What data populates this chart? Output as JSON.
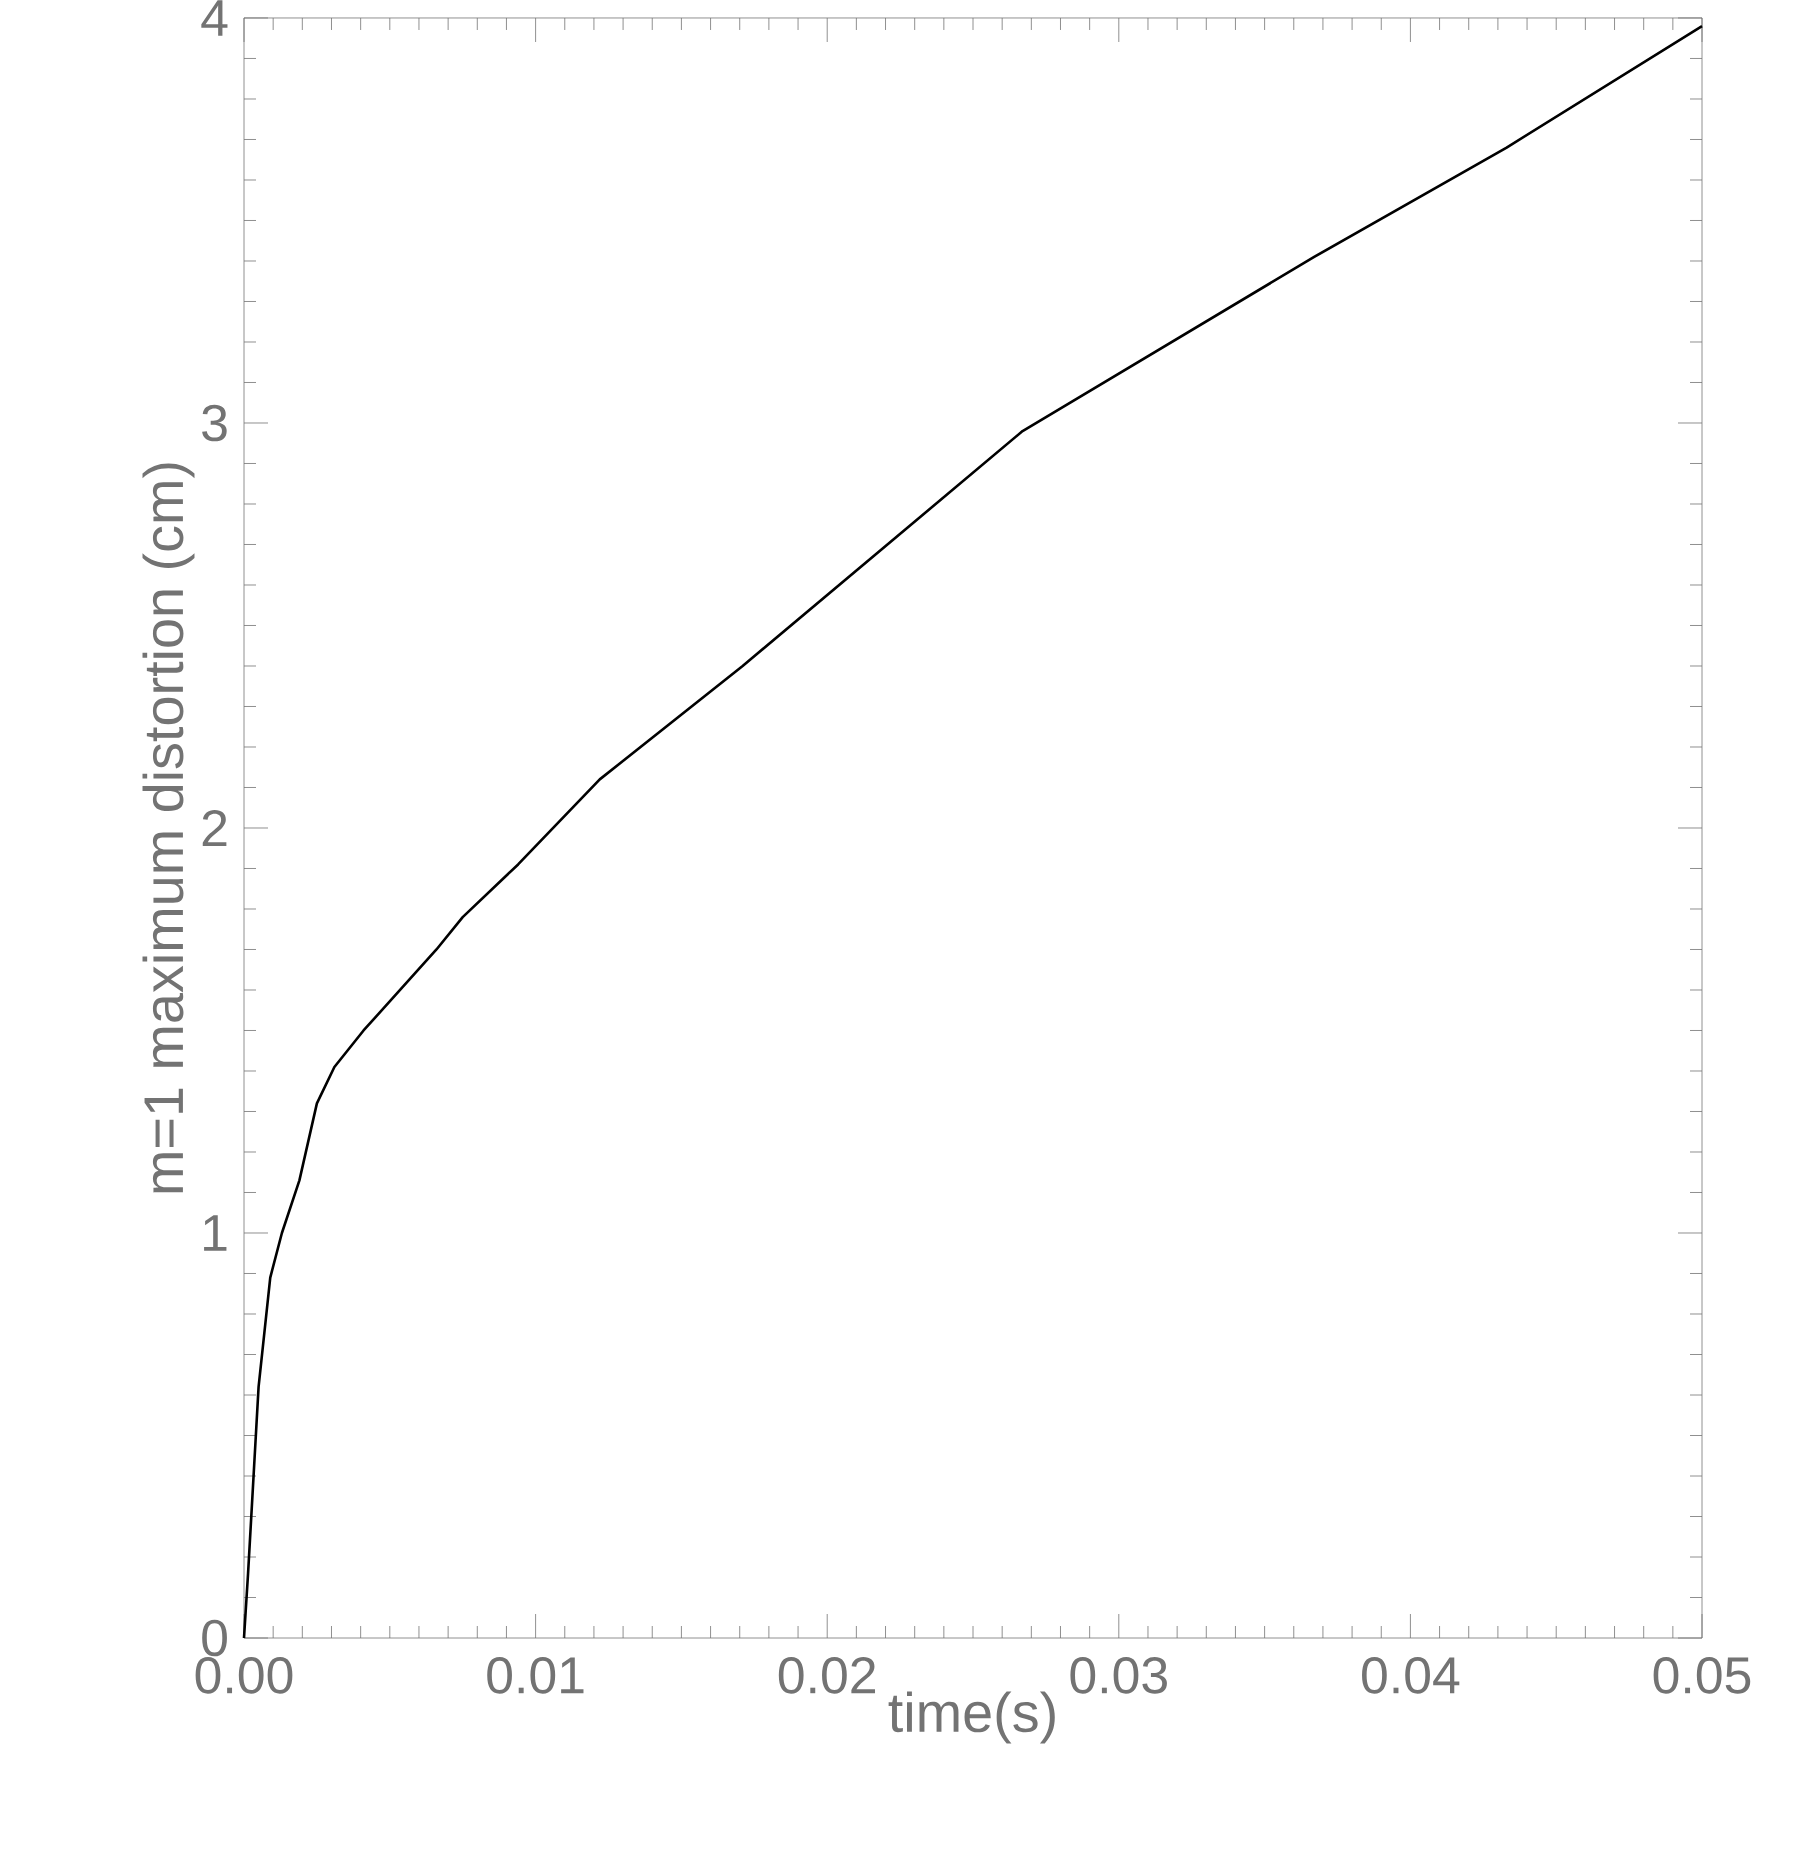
{
  "chart_data": {
    "type": "line",
    "xlabel": "time(s)",
    "ylabel": "m=1 maximum distortion (cm)",
    "xlim": [
      0,
      0.05
    ],
    "ylim": [
      0,
      4
    ],
    "xticks": [
      {
        "value": 0,
        "label": "0.00"
      },
      {
        "value": 0.01,
        "label": "0.01"
      },
      {
        "value": 0.02,
        "label": "0.02"
      },
      {
        "value": 0.03,
        "label": "0.03"
      },
      {
        "value": 0.04,
        "label": "0.04"
      },
      {
        "value": 0.05,
        "label": "0.05"
      }
    ],
    "yticks": [
      0,
      1,
      2,
      3,
      4
    ],
    "grid": false,
    "series": [
      {
        "color": "#000000",
        "x": [
          0,
          0.00014,
          0.0005,
          0.0009,
          0.0013,
          0.0019,
          0.0025,
          0.0031,
          0.0041,
          0.0066,
          0.0075,
          0.0094,
          0.0122,
          0.0171,
          0.0267,
          0.0367,
          0.0433,
          0.05
        ],
        "values": [
          0,
          0.16,
          0.62,
          0.89,
          1.0,
          1.13,
          1.32,
          1.41,
          1.5,
          1.7,
          1.78,
          1.91,
          2.12,
          2.4,
          2.98,
          3.41,
          3.68,
          3.98
        ]
      }
    ]
  }
}
